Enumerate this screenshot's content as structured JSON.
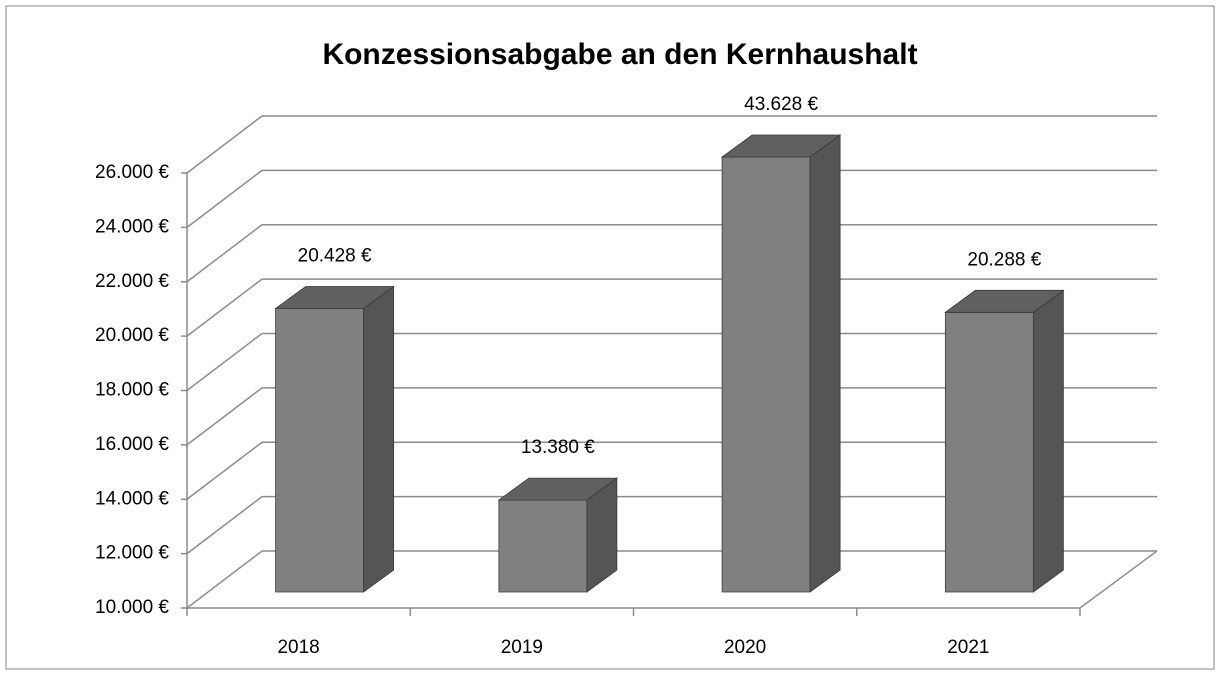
{
  "chart_data": {
    "type": "bar3d",
    "title": "Konzessionsabgabe an den Kernhaushalt",
    "categories": [
      "2018",
      "2019",
      "2020",
      "2021"
    ],
    "values": [
      20428,
      13380,
      43628,
      20288
    ],
    "value_labels": [
      "20.428 €",
      "13.380 €",
      "43.628 €",
      "20.288 €"
    ],
    "color": "#808080",
    "ylim": [
      10000,
      26000
    ],
    "yticks": [
      {
        "value": 10000,
        "label": "10.000 €"
      },
      {
        "value": 12000,
        "label": "12.000 €"
      },
      {
        "value": 14000,
        "label": "14.000 €"
      },
      {
        "value": 16000,
        "label": "16.000 €"
      },
      {
        "value": 18000,
        "label": "18.000 €"
      },
      {
        "value": 20000,
        "label": "20.000 €"
      },
      {
        "value": 22000,
        "label": "22.000 €"
      },
      {
        "value": 24000,
        "label": "24.000 €"
      },
      {
        "value": 26000,
        "label": "26.000 €"
      }
    ],
    "grid": true
  }
}
